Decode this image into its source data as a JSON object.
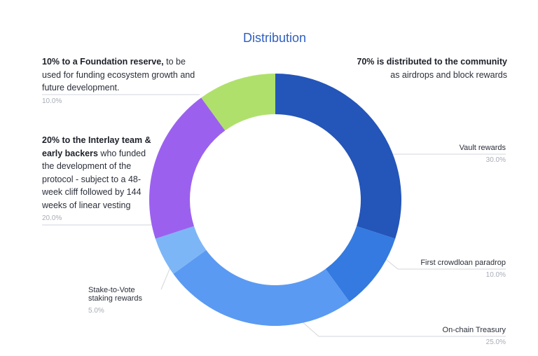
{
  "chart_data": {
    "type": "pie",
    "title": "Distribution",
    "slices": [
      {
        "label": "Vault rewards",
        "value": 30.0,
        "value_label": "30.0%",
        "color": "#2455b8"
      },
      {
        "label": "First crowdloan paradrop",
        "value": 10.0,
        "value_label": "10.0%",
        "color": "#347ae0"
      },
      {
        "label": "On-chain Treasury",
        "value": 25.0,
        "value_label": "25.0%",
        "color": "#5a9af2"
      },
      {
        "label": "Stake-to-Vote staking rewards",
        "label_lines": [
          "Stake-to-Vote",
          "staking rewards"
        ],
        "value": 5.0,
        "value_label": "5.0%",
        "color": "#7db6f7"
      },
      {
        "label": "",
        "value": 20.0,
        "value_label": "20.0%",
        "color": "#9b61ee"
      },
      {
        "label": "",
        "value": 10.0,
        "value_label": "10.0%",
        "color": "#b0e06c"
      }
    ]
  },
  "annotations": {
    "community": {
      "bold": "70% is distributed to the community",
      "text": "as airdrops and block rewards"
    },
    "foundation": {
      "bold": "10% to a Foundation reserve,",
      "text": " to be used for funding ecosystem growth and future development.",
      "pct": "10.0%"
    },
    "team": {
      "bold": "20% to the Interlay team & early backers",
      "text": " who funded the development of the protocol - subject to a 48-week cliff followed by 144 weeks of linear vesting",
      "pct": "20.0%"
    }
  }
}
